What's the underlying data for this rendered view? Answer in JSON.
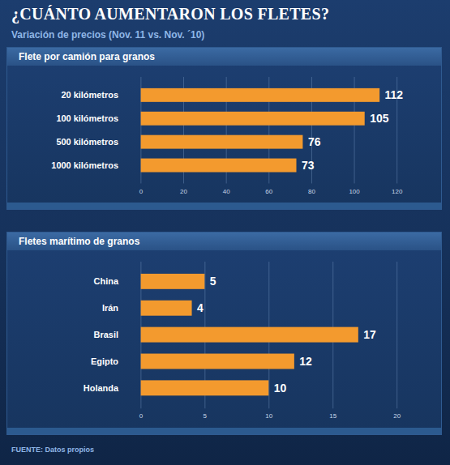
{
  "title": "¿CUÁNTO AUMENTARON LOS FLETES?",
  "subtitle": "Variación de precios (Nov. 11 vs. Nov. ´10)",
  "source": "FUENTE: Datos propios",
  "chart_data": [
    {
      "type": "bar",
      "title": "Flete por camión para granos",
      "categories": [
        "20 kilómetros",
        "100 kilómetros",
        "500 kilómetros",
        "1000 kilómetros"
      ],
      "values": [
        112,
        105,
        76,
        73
      ],
      "color": "#f39a2e",
      "orientation": "horizontal",
      "xlim": [
        0,
        120
      ],
      "xticks": [
        0,
        20,
        40,
        60,
        80,
        100,
        120
      ],
      "grid": true,
      "data_labels": true
    },
    {
      "type": "bar",
      "title": "Fletes marítimo de granos",
      "categories": [
        "China",
        "Irán",
        "Brasil",
        "Egipto",
        "Holanda"
      ],
      "values": [
        5,
        4,
        17,
        12,
        10
      ],
      "color": "#f39a2e",
      "orientation": "horizontal",
      "xlim": [
        0,
        20
      ],
      "xticks": [
        0,
        5,
        10,
        15,
        20
      ],
      "grid": true,
      "data_labels": true
    }
  ]
}
